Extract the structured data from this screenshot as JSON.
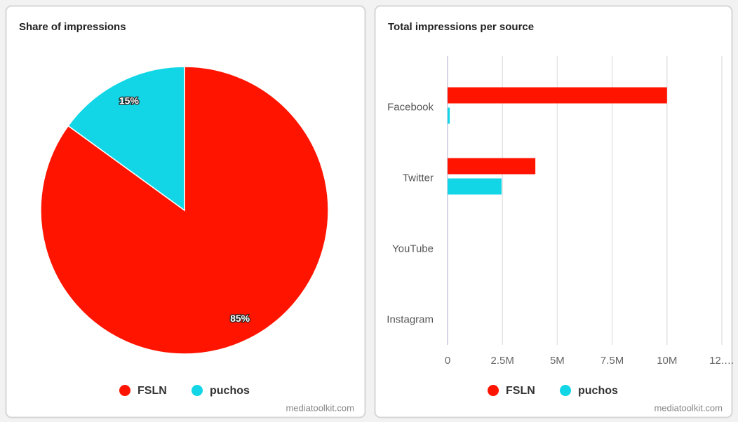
{
  "chart_data": [
    {
      "type": "pie",
      "title": "Share of impressions",
      "categories": [
        "FSLN",
        "puchos"
      ],
      "values": [
        85,
        15
      ],
      "value_labels": [
        "85%",
        "15%"
      ],
      "colors": [
        "#ff1400",
        "#12d6e6"
      ],
      "credit": "mediatoolkit.com"
    },
    {
      "type": "bar",
      "title": "Total impressions per source",
      "categories": [
        "Facebook",
        "Twitter",
        "YouTube",
        "Instagram"
      ],
      "series": [
        {
          "name": "FSLN",
          "color": "#ff1400",
          "values": [
            10000000,
            4000000,
            0,
            0
          ]
        },
        {
          "name": "puchos",
          "color": "#12d6e6",
          "values": [
            100000,
            2460000,
            0,
            0
          ]
        }
      ],
      "xlim": [
        0,
        12500000
      ],
      "xticks": [
        0,
        {
          "value": 2500000,
          "label": "2.5M"
        },
        {
          "value": 5000000,
          "label": "5M"
        },
        {
          "value": 7500000,
          "label": "7.5M"
        },
        {
          "value": 10000000,
          "label": "10M"
        },
        {
          "value": 12500000,
          "label": "12.…"
        }
      ],
      "grid": true,
      "credit": "mediatoolkit.com"
    }
  ]
}
